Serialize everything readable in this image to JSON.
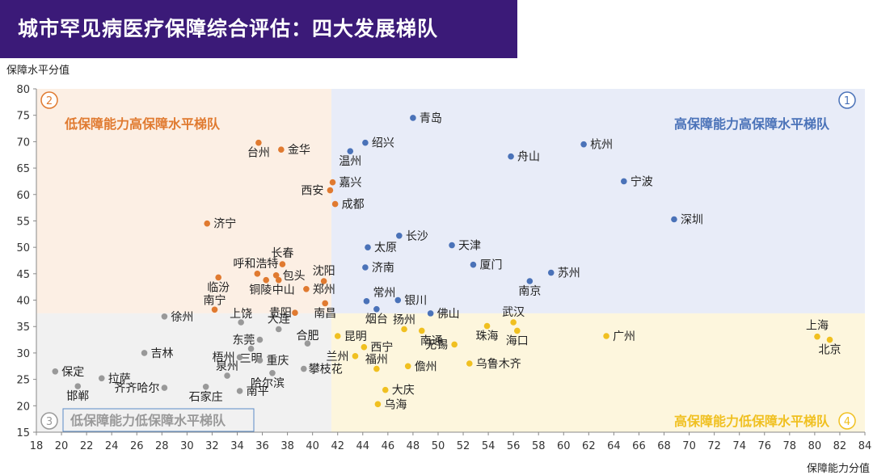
{
  "title": "城市罕见病医疗保障综合评估：四大发展梯队",
  "chart_data": {
    "type": "scatter",
    "xlabel": "保障能力分值",
    "ylabel": "保障水平分值",
    "xlim": [
      18,
      84
    ],
    "ylim": [
      15,
      80
    ],
    "x_ticks": [
      18,
      20,
      22,
      24,
      26,
      28,
      30,
      32,
      34,
      36,
      38,
      40,
      42,
      44,
      46,
      48,
      50,
      52,
      54,
      56,
      58,
      60,
      62,
      64,
      66,
      68,
      70,
      72,
      74,
      76,
      78,
      80,
      82,
      84
    ],
    "y_ticks": [
      15,
      20,
      25,
      30,
      35,
      40,
      45,
      50,
      55,
      60,
      65,
      70,
      75,
      80
    ],
    "divider_x": 41.5,
    "divider_y": 37.5,
    "quadrants": [
      {
        "number": "1",
        "label": "高保障能力高保障水平梯队",
        "color": "#4a72b8",
        "bg": "#e8ecf8"
      },
      {
        "number": "2",
        "label": "低保障能力高保障水平梯队",
        "color": "#e07a30",
        "bg": "#fcefe4"
      },
      {
        "number": "3",
        "label": "低保障能力低保障水平梯队",
        "color": "#999999",
        "bg": "#f1f1f1"
      },
      {
        "number": "4",
        "label": "高保障能力低保障水平梯队",
        "color": "#f0c020",
        "bg": "#fdf6dd"
      }
    ],
    "series": [
      {
        "name": "高保障能力高保障水平梯队",
        "color": "#4a72b8",
        "points": [
          {
            "name": "青岛",
            "x": 48,
            "y": 74.5
          },
          {
            "name": "绍兴",
            "x": 44.2,
            "y": 69.8
          },
          {
            "name": "温州",
            "x": 43,
            "y": 68.2
          },
          {
            "name": "杭州",
            "x": 61.6,
            "y": 69.5
          },
          {
            "name": "舟山",
            "x": 55.8,
            "y": 67.2
          },
          {
            "name": "宁波",
            "x": 64.8,
            "y": 62.5
          },
          {
            "name": "深圳",
            "x": 68.8,
            "y": 55.3
          },
          {
            "name": "长沙",
            "x": 46.9,
            "y": 52.2
          },
          {
            "name": "天津",
            "x": 51.1,
            "y": 50.4
          },
          {
            "name": "太原",
            "x": 44.4,
            "y": 50
          },
          {
            "name": "厦门",
            "x": 52.8,
            "y": 46.7
          },
          {
            "name": "济南",
            "x": 44.2,
            "y": 46.2
          },
          {
            "name": "苏州",
            "x": 59,
            "y": 45.2
          },
          {
            "name": "南京",
            "x": 57.3,
            "y": 43.6
          },
          {
            "name": "常州",
            "x": 44.3,
            "y": 39.8
          },
          {
            "name": "银川",
            "x": 46.8,
            "y": 40
          },
          {
            "name": "烟台",
            "x": 45.1,
            "y": 38.3
          },
          {
            "name": "佛山",
            "x": 49.4,
            "y": 37.5
          }
        ]
      },
      {
        "name": "低保障能力高保障水平梯队",
        "color": "#e07a30",
        "points": [
          {
            "name": "台州",
            "x": 35.7,
            "y": 69.8
          },
          {
            "name": "金华",
            "x": 37.5,
            "y": 68.5
          },
          {
            "name": "嘉兴",
            "x": 41.6,
            "y": 62.3
          },
          {
            "name": "西安",
            "x": 41.4,
            "y": 60.8
          },
          {
            "name": "成都",
            "x": 41.8,
            "y": 58.2
          },
          {
            "name": "济宁",
            "x": 31.6,
            "y": 54.5
          },
          {
            "name": "长春",
            "x": 37.6,
            "y": 46.8
          },
          {
            "name": "呼和浩特",
            "x": 35.6,
            "y": 45
          },
          {
            "name": "包头",
            "x": 37.1,
            "y": 44.7
          },
          {
            "name": "沈阳",
            "x": 40.9,
            "y": 43.6
          },
          {
            "name": "临汾",
            "x": 32.5,
            "y": 44.3
          },
          {
            "name": "铜陵",
            "x": 36.3,
            "y": 43.8
          },
          {
            "name": "中山",
            "x": 37.3,
            "y": 43.8
          },
          {
            "name": "郑州",
            "x": 39.5,
            "y": 42.1
          },
          {
            "name": "南宁",
            "x": 32.2,
            "y": 38.2
          },
          {
            "name": "贵阳",
            "x": 38.6,
            "y": 37.6
          },
          {
            "name": "南昌",
            "x": 41,
            "y": 39.4
          }
        ]
      },
      {
        "name": "低保障能力低保障水平梯队",
        "color": "#999999",
        "points": [
          {
            "name": "徐州",
            "x": 28.2,
            "y": 36.9
          },
          {
            "name": "上饶",
            "x": 34.3,
            "y": 35.8
          },
          {
            "name": "大连",
            "x": 37.3,
            "y": 34.5
          },
          {
            "name": "东莞",
            "x": 35.8,
            "y": 32.5
          },
          {
            "name": "合肥",
            "x": 39.6,
            "y": 31.8
          },
          {
            "name": "三明",
            "x": 35.1,
            "y": 30.8
          },
          {
            "name": "吉林",
            "x": 26.6,
            "y": 30
          },
          {
            "name": "梧州",
            "x": 34.2,
            "y": 29.2
          },
          {
            "name": "重庆",
            "x": 35.8,
            "y": 28.6
          },
          {
            "name": "攀枝花",
            "x": 39.3,
            "y": 27
          },
          {
            "name": "保定",
            "x": 19.5,
            "y": 26.5
          },
          {
            "name": "泉州",
            "x": 33.2,
            "y": 25.7
          },
          {
            "name": "哈尔滨",
            "x": 36.8,
            "y": 26.2
          },
          {
            "name": "拉萨",
            "x": 23.2,
            "y": 25.2
          },
          {
            "name": "邯郸",
            "x": 21.3,
            "y": 23.7
          },
          {
            "name": "齐齐哈尔",
            "x": 28.2,
            "y": 23.4
          },
          {
            "name": "石家庄",
            "x": 31.5,
            "y": 23.6
          },
          {
            "name": "南平",
            "x": 34.2,
            "y": 22.8
          }
        ]
      },
      {
        "name": "高保障能力低保障水平梯队",
        "color": "#f0c020",
        "points": [
          {
            "name": "武汉",
            "x": 56,
            "y": 35.8
          },
          {
            "name": "扬州",
            "x": 47.3,
            "y": 34.5
          },
          {
            "name": "南通",
            "x": 48.7,
            "y": 34.2
          },
          {
            "name": "昆明",
            "x": 42,
            "y": 33.2
          },
          {
            "name": "珠海",
            "x": 53.9,
            "y": 35.1
          },
          {
            "name": "海口",
            "x": 56.3,
            "y": 34.2
          },
          {
            "name": "广州",
            "x": 63.4,
            "y": 33.2
          },
          {
            "name": "上海",
            "x": 80.2,
            "y": 33.1
          },
          {
            "name": "北京",
            "x": 81.2,
            "y": 32.5
          },
          {
            "name": "无锡",
            "x": 51.3,
            "y": 31.6
          },
          {
            "name": "西宁",
            "x": 44.1,
            "y": 31.1
          },
          {
            "name": "兰州",
            "x": 43.4,
            "y": 29.4
          },
          {
            "name": "福州",
            "x": 45.1,
            "y": 27
          },
          {
            "name": "儋州",
            "x": 47.6,
            "y": 27.5
          },
          {
            "name": "乌鲁木齐",
            "x": 52.5,
            "y": 28
          },
          {
            "name": "大庆",
            "x": 45.8,
            "y": 23
          },
          {
            "name": "乌海",
            "x": 45.2,
            "y": 20.3
          }
        ]
      }
    ]
  }
}
